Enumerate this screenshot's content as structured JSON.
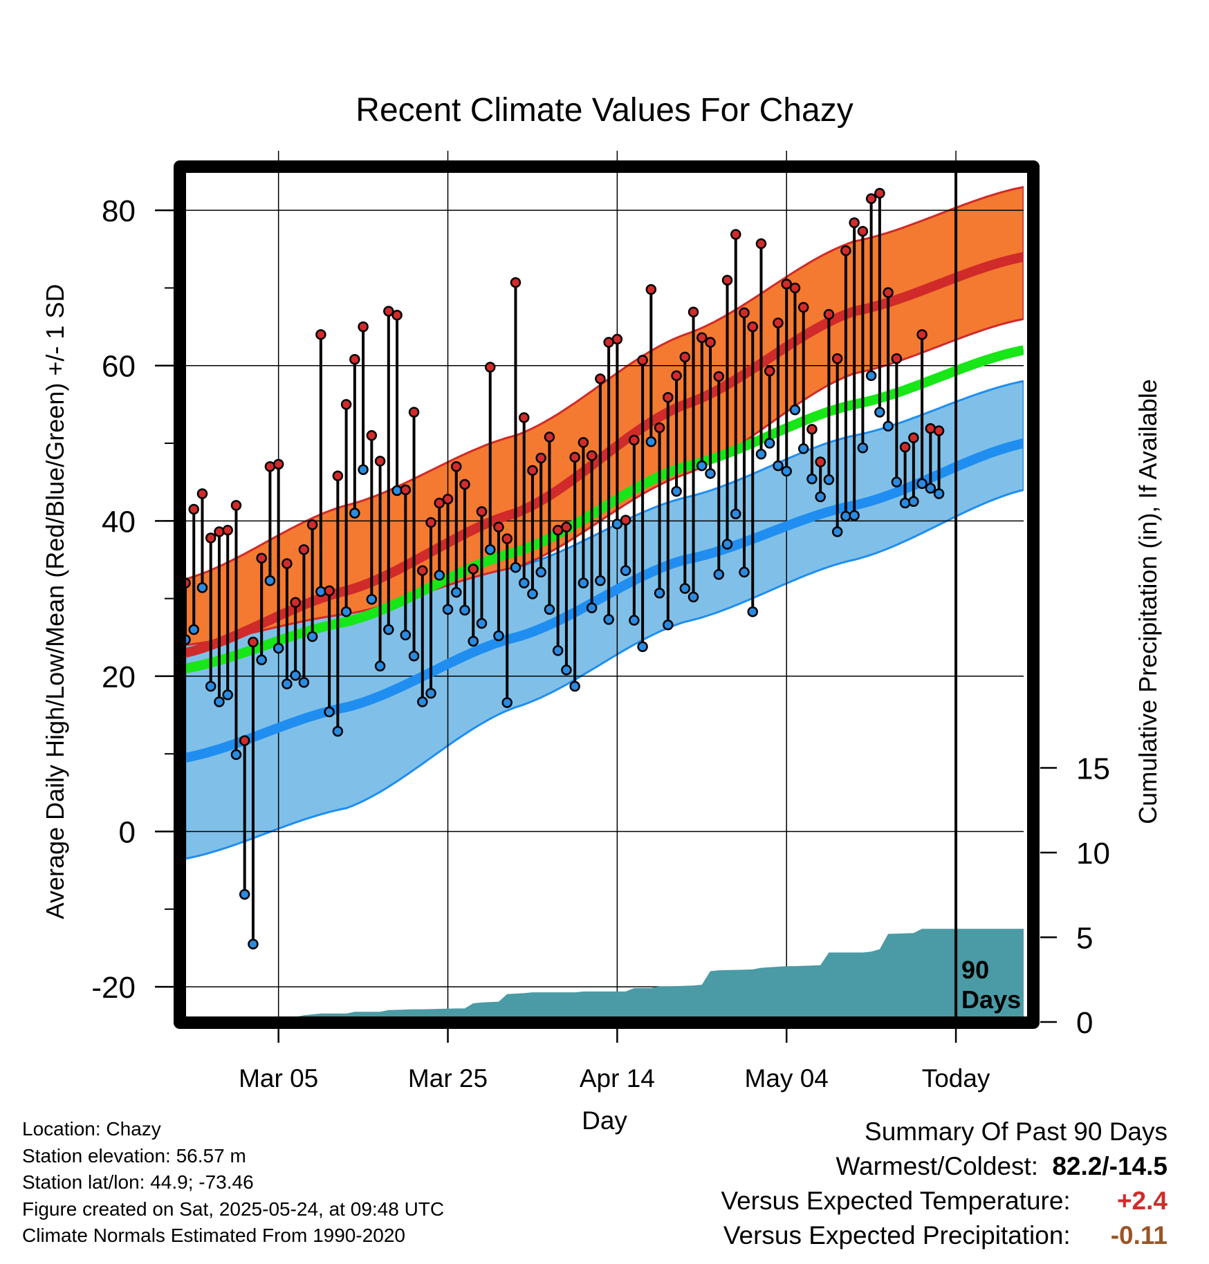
{
  "title": "Recent Climate Values For Chazy",
  "chart_data": {
    "type": "line",
    "title": "Recent Climate Values For Chazy",
    "xlabel": "Day",
    "ylabel": "Average Daily High/Low/Mean (Red/Blue/Green) +/- 1 SD",
    "y2label": "Cumulative Precipitation (in), If Available",
    "x_ticks": [
      {
        "day": 12,
        "label": "Mar 05"
      },
      {
        "day": 32,
        "label": "Mar 25"
      },
      {
        "day": 52,
        "label": "Apr 14"
      },
      {
        "day": 72,
        "label": "May 04"
      },
      {
        "day": 92,
        "label": "Today"
      }
    ],
    "y_ticks": [
      -20,
      0,
      20,
      40,
      60,
      80
    ],
    "y2_ticks": [
      0,
      5,
      10,
      15
    ],
    "ylim": [
      -24,
      85
    ],
    "y2lim": [
      0,
      15
    ],
    "xlim": [
      1,
      100
    ],
    "grid": true,
    "today_marker": {
      "day": 92,
      "label_line1": "90",
      "label_line2": "Days"
    },
    "normals": {
      "x": [
        1,
        20,
        40,
        60,
        80,
        100
      ],
      "high_mean": [
        23,
        31,
        41,
        55,
        67,
        74
      ],
      "high_plus_sd": [
        32.5,
        42,
        51,
        64,
        76,
        83
      ],
      "high_minus_sd": [
        24,
        28,
        34,
        46,
        59,
        66
      ],
      "mean": [
        21,
        27,
        36,
        47,
        55,
        62
      ],
      "low_mean": [
        9.5,
        16,
        25,
        35,
        42,
        50
      ],
      "low_plus_sd": [
        24,
        29,
        34,
        43,
        51,
        58
      ],
      "low_minus_sd": [
        -3.5,
        3,
        16,
        27,
        35,
        44
      ]
    },
    "daily": {
      "days": [
        1,
        2,
        3,
        4,
        5,
        6,
        7,
        8,
        9,
        10,
        11,
        12,
        13,
        14,
        15,
        16,
        17,
        18,
        19,
        20,
        21,
        22,
        23,
        24,
        25,
        26,
        27,
        28,
        29,
        30,
        31,
        32,
        33,
        34,
        35,
        36,
        37,
        38,
        39,
        40,
        41,
        42,
        43,
        44,
        45,
        46,
        47,
        48,
        49,
        50,
        51,
        52,
        53,
        54,
        55,
        56,
        57,
        58,
        59,
        60,
        61,
        62,
        63,
        64,
        65,
        66,
        67,
        68,
        69,
        70,
        71,
        72,
        73,
        74,
        75,
        76,
        77,
        78,
        79,
        80,
        81,
        82,
        83,
        84,
        85,
        86,
        87,
        88,
        89,
        90
      ],
      "highs": [
        32,
        41.5,
        43.5,
        37.8,
        38.6,
        38.8,
        42,
        11.7,
        24.4,
        35.2,
        47,
        47.3,
        34.5,
        29.5,
        36.3,
        39.5,
        64,
        31,
        45.8,
        55,
        60.8,
        65,
        51,
        47.7,
        67,
        66.5,
        44,
        54,
        33.6,
        39.8,
        42.3,
        42.8,
        47,
        44.7,
        33.8,
        41.2,
        59.8,
        39.2,
        37.7,
        70.7,
        53.3,
        46.5,
        48.1,
        50.8,
        38.8,
        39.2,
        48.2,
        50.1,
        48.4,
        58.3,
        63,
        63.4,
        40.1,
        50.4,
        60.7,
        69.8,
        52,
        55.9,
        58.7,
        61.1,
        66.9,
        63.6,
        63,
        58.6,
        71,
        76.9,
        66.8,
        65,
        75.7,
        59.3,
        65.5,
        70.5,
        70,
        67.5,
        51.8,
        47.6,
        66.6,
        60.9,
        74.8,
        78.4,
        77.3,
        81.5,
        82.2,
        69.4,
        60.9,
        49.5,
        50.7,
        64,
        51.9,
        51.6
      ],
      "lows": [
        24.7,
        26,
        31.4,
        18.7,
        16.7,
        17.6,
        9.9,
        -8.1,
        -14.5,
        22.1,
        32.3,
        23.6,
        19,
        20.1,
        19.2,
        25.1,
        30.9,
        15.4,
        12.9,
        28.3,
        41,
        46.6,
        29.9,
        21.3,
        26,
        43.9,
        25.3,
        22.6,
        16.7,
        17.8,
        33,
        28.6,
        30.8,
        28.5,
        24.5,
        26.8,
        36.3,
        25.2,
        16.6,
        34,
        32,
        30.6,
        33.4,
        28.6,
        23.3,
        20.8,
        18.7,
        32,
        28.8,
        32.3,
        27.3,
        39.6,
        33.6,
        27.2,
        23.8,
        50.2,
        30.7,
        26.6,
        43.8,
        31.3,
        30.2,
        47.1,
        46.1,
        33.1,
        37,
        40.9,
        33.4,
        28.3,
        48.6,
        50,
        47.1,
        46.4,
        54.3,
        49.3,
        45.4,
        43.1,
        45.3,
        38.6,
        40.6,
        40.7,
        49.4,
        58.7,
        54,
        52.2,
        45,
        42.3,
        42.5,
        44.8,
        44.2,
        43.5
      ]
    },
    "precip_cumulative": {
      "x": [
        1,
        9,
        10,
        11,
        14,
        15,
        16,
        17,
        20,
        21,
        24,
        25,
        28,
        29,
        33,
        34,
        35,
        36,
        38,
        39,
        41,
        42,
        47,
        48,
        53,
        54,
        56,
        57,
        58,
        61,
        62,
        63,
        64,
        68,
        69,
        72,
        73,
        76,
        77,
        81,
        82,
        83,
        84,
        87,
        88,
        100
      ],
      "y": [
        0,
        0,
        0.2,
        0.3,
        0.3,
        0.4,
        0.45,
        0.5,
        0.5,
        0.6,
        0.6,
        0.7,
        0.75,
        0.75,
        0.8,
        0.8,
        1.1,
        1.15,
        1.2,
        1.65,
        1.7,
        1.75,
        1.75,
        1.8,
        1.8,
        2.0,
        2.0,
        2.1,
        2.1,
        2.15,
        2.2,
        3.0,
        3.05,
        3.1,
        3.2,
        3.3,
        3.3,
        3.35,
        4.1,
        4.1,
        4.15,
        4.3,
        5.2,
        5.25,
        5.5,
        5.5
      ]
    }
  },
  "footer": {
    "location": "Location: Chazy",
    "elevation": "Station elevation: 56.57 m",
    "latlon": "Station lat/lon: 44.9; -73.46",
    "created": "Figure created on Sat, 2025-05-24, at 09:48 UTC",
    "normals": "Climate Normals Estimated From 1990-2020"
  },
  "summary": {
    "heading": "Summary Of Past 90 Days",
    "warm_cold_label": "Warmest/Coldest:",
    "warm_cold_value": "82.2/-14.5",
    "temp_label": "Versus Expected Temperature:",
    "temp_value": "+2.4",
    "temp_color": "#d22b2b",
    "precip_label": "Versus Expected Precipitation:",
    "precip_value": "-0.11",
    "precip_color": "#9a5527"
  },
  "colors": {
    "high_band": "#f37a30",
    "high_line": "#d02a2a",
    "low_band": "#80c0e8",
    "low_line": "#1f8ef0",
    "mean_line": "#17e617",
    "precip_fill": "#4a9ba5",
    "high_dot": "#d22b2b",
    "low_dot": "#2a8be0"
  }
}
